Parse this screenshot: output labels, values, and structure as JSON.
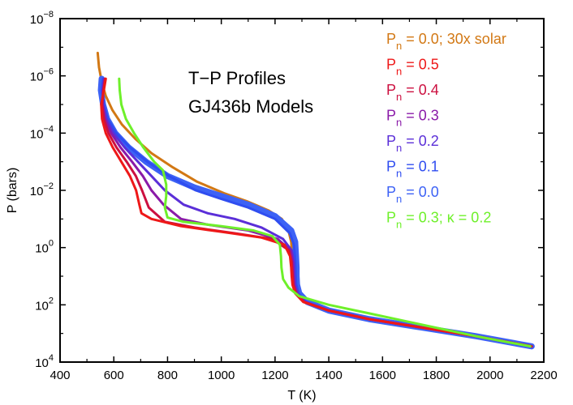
{
  "chart_data": {
    "type": "line",
    "title": "T−P Profiles",
    "subtitle": "GJ436b Models",
    "xlabel": "T (K)",
    "ylabel": "P (bars)",
    "xlim": [
      400,
      2200
    ],
    "ylim_log10": [
      -8,
      4
    ],
    "y_inverted": true,
    "y_scale": "log",
    "x_ticks": [
      400,
      600,
      800,
      1000,
      1200,
      1400,
      1600,
      1800,
      2000,
      2200
    ],
    "y_ticks": [
      {
        "base": "10",
        "exp": "−8",
        "value": -8
      },
      {
        "base": "10",
        "exp": "−6",
        "value": -6
      },
      {
        "base": "10",
        "exp": "−4",
        "value": -4
      },
      {
        "base": "10",
        "exp": "−2",
        "value": -2
      },
      {
        "base": "10",
        "exp": "0",
        "value": 0
      },
      {
        "base": "10",
        "exp": "2",
        "value": 2
      },
      {
        "base": "10",
        "exp": "4",
        "value": 4
      }
    ],
    "legend_position": "top-right",
    "series": [
      {
        "id": "pn00",
        "name": "P",
        "sub": "n",
        "suffix": " = 0.0",
        "color": "#3d62f5",
        "lw": 7.5,
        "order": 1,
        "points": [
          [
            555,
            -5.9
          ],
          [
            552,
            -5.5
          ],
          [
            560,
            -5
          ],
          [
            575,
            -4.5
          ],
          [
            605,
            -4
          ],
          [
            655,
            -3.5
          ],
          [
            720,
            -3
          ],
          [
            800,
            -2.5
          ],
          [
            900,
            -2.1
          ],
          [
            1000,
            -1.8
          ],
          [
            1100,
            -1.5
          ],
          [
            1200,
            -1.1
          ],
          [
            1260,
            -0.6
          ],
          [
            1275,
            -0.2
          ],
          [
            1278,
            0.3
          ],
          [
            1280,
            0.7
          ],
          [
            1280,
            1.0
          ],
          [
            1282,
            1.3
          ],
          [
            1290,
            1.6
          ],
          [
            1320,
            1.9
          ],
          [
            1400,
            2.2
          ],
          [
            1550,
            2.5
          ],
          [
            1750,
            2.8
          ],
          [
            1950,
            3.1
          ],
          [
            2155,
            3.45
          ]
        ]
      },
      {
        "id": "pn01",
        "name": "P",
        "sub": "n",
        "suffix": " = 0.1",
        "color": "#2f4df0",
        "lw": 3,
        "order": 2,
        "points": [
          [
            560,
            -5.9
          ],
          [
            556,
            -5.5
          ],
          [
            562,
            -5
          ],
          [
            577,
            -4.5
          ],
          [
            608,
            -4
          ],
          [
            660,
            -3.5
          ],
          [
            725,
            -3
          ],
          [
            805,
            -2.5
          ],
          [
            905,
            -2.0
          ],
          [
            1000,
            -1.7
          ],
          [
            1100,
            -1.4
          ],
          [
            1200,
            -1.0
          ],
          [
            1255,
            -0.5
          ],
          [
            1270,
            -0.1
          ],
          [
            1274,
            0.3
          ],
          [
            1276,
            0.7
          ],
          [
            1277,
            1.0
          ],
          [
            1279,
            1.3
          ],
          [
            1287,
            1.6
          ],
          [
            1315,
            1.9
          ],
          [
            1400,
            2.2
          ],
          [
            1550,
            2.5
          ],
          [
            1750,
            2.8
          ],
          [
            1950,
            3.1
          ],
          [
            2155,
            3.45
          ]
        ]
      },
      {
        "id": "pn02",
        "name": "P",
        "sub": "n",
        "suffix": " = 0.2",
        "color": "#5b2fd8",
        "lw": 3,
        "order": 3,
        "points": [
          [
            563,
            -5.9
          ],
          [
            558,
            -5.5
          ],
          [
            560,
            -5
          ],
          [
            572,
            -4.5
          ],
          [
            598,
            -4
          ],
          [
            640,
            -3.5
          ],
          [
            690,
            -3.0
          ],
          [
            740,
            -2.5
          ],
          [
            790,
            -2.0
          ],
          [
            860,
            -1.5
          ],
          [
            950,
            -1.2
          ],
          [
            1050,
            -1.0
          ],
          [
            1150,
            -0.7
          ],
          [
            1230,
            -0.3
          ],
          [
            1262,
            0.1
          ],
          [
            1270,
            0.5
          ],
          [
            1272,
            0.9
          ],
          [
            1275,
            1.3
          ],
          [
            1284,
            1.6
          ],
          [
            1312,
            1.9
          ],
          [
            1400,
            2.2
          ],
          [
            1550,
            2.5
          ],
          [
            1750,
            2.8
          ],
          [
            1950,
            3.1
          ],
          [
            2155,
            3.45
          ]
        ]
      },
      {
        "id": "pn03",
        "name": "P",
        "sub": "n",
        "suffix": " = 0.3",
        "color": "#8a1aa8",
        "lw": 3,
        "order": 4,
        "points": [
          [
            566,
            -5.9
          ],
          [
            560,
            -5.5
          ],
          [
            558,
            -5
          ],
          [
            568,
            -4.5
          ],
          [
            590,
            -4
          ],
          [
            625,
            -3.5
          ],
          [
            668,
            -3.0
          ],
          [
            708,
            -2.5
          ],
          [
            740,
            -2.0
          ],
          [
            785,
            -1.5
          ],
          [
            850,
            -1.0
          ],
          [
            950,
            -0.8
          ],
          [
            1100,
            -0.6
          ],
          [
            1210,
            -0.3
          ],
          [
            1258,
            0.1
          ],
          [
            1266,
            0.5
          ],
          [
            1268,
            0.9
          ],
          [
            1271,
            1.3
          ],
          [
            1281,
            1.6
          ],
          [
            1310,
            1.9
          ],
          [
            1400,
            2.2
          ],
          [
            1550,
            2.5
          ],
          [
            1750,
            2.8
          ],
          [
            1950,
            3.1
          ],
          [
            2155,
            3.45
          ]
        ]
      },
      {
        "id": "pn04",
        "name": "P",
        "sub": "n",
        "suffix": " = 0.4",
        "color": "#cc1040",
        "lw": 3,
        "order": 5,
        "points": [
          [
            568,
            -5.9
          ],
          [
            562,
            -5.5
          ],
          [
            556,
            -5
          ],
          [
            563,
            -4.5
          ],
          [
            580,
            -4
          ],
          [
            610,
            -3.5
          ],
          [
            648,
            -3.0
          ],
          [
            682,
            -2.5
          ],
          [
            705,
            -2.0
          ],
          [
            730,
            -1.4
          ],
          [
            790,
            -0.9
          ],
          [
            900,
            -0.7
          ],
          [
            1050,
            -0.5
          ],
          [
            1190,
            -0.3
          ],
          [
            1252,
            0.1
          ],
          [
            1262,
            0.5
          ],
          [
            1265,
            0.9
          ],
          [
            1268,
            1.3
          ],
          [
            1278,
            1.6
          ],
          [
            1308,
            1.9
          ],
          [
            1400,
            2.2
          ],
          [
            1550,
            2.5
          ],
          [
            1750,
            2.8
          ],
          [
            1950,
            3.1
          ],
          [
            2155,
            3.45
          ]
        ]
      },
      {
        "id": "pn05",
        "name": "P",
        "sub": "n",
        "suffix": " = 0.5",
        "color": "#ee1818",
        "lw": 3,
        "order": 6,
        "points": [
          [
            570,
            -5.9
          ],
          [
            563,
            -5.5
          ],
          [
            553,
            -5
          ],
          [
            556,
            -4.5
          ],
          [
            570,
            -4
          ],
          [
            596,
            -3.5
          ],
          [
            628,
            -3.0
          ],
          [
            660,
            -2.5
          ],
          [
            683,
            -2.0
          ],
          [
            695,
            -1.5
          ],
          [
            703,
            -1.2
          ],
          [
            740,
            -1.0
          ],
          [
            850,
            -0.75
          ],
          [
            1000,
            -0.55
          ],
          [
            1150,
            -0.35
          ],
          [
            1235,
            -0.1
          ],
          [
            1256,
            0.3
          ],
          [
            1260,
            0.7
          ],
          [
            1262,
            1.0
          ],
          [
            1265,
            1.3
          ],
          [
            1275,
            1.6
          ],
          [
            1305,
            1.9
          ],
          [
            1400,
            2.2
          ],
          [
            1550,
            2.5
          ],
          [
            1750,
            2.8
          ],
          [
            1950,
            3.1
          ],
          [
            2155,
            3.45
          ]
        ]
      },
      {
        "id": "solar30",
        "name": "P",
        "sub": "n",
        "suffix": " = 0.0; 30x solar",
        "color": "#d27814",
        "lw": 3,
        "order": 0,
        "points": [
          [
            540,
            -6.8
          ],
          [
            545,
            -6.3
          ],
          [
            555,
            -5.8
          ],
          [
            570,
            -5.3
          ],
          [
            595,
            -4.8
          ],
          [
            630,
            -4.3
          ],
          [
            680,
            -3.8
          ],
          [
            740,
            -3.3
          ],
          [
            820,
            -2.8
          ],
          [
            910,
            -2.3
          ],
          [
            1010,
            -1.9
          ],
          [
            1100,
            -1.6
          ],
          [
            1175,
            -1.3
          ],
          [
            1225,
            -1.0
          ],
          [
            1250,
            -0.6
          ],
          [
            1260,
            -0.2
          ],
          [
            1262,
            0.1
          ]
        ]
      },
      {
        "id": "kappa",
        "name": "P",
        "sub": "n",
        "suffix": " = 0.3; κ = 0.2",
        "color": "#6ef02a",
        "lw": 3,
        "order": 7,
        "points": [
          [
            620,
            -5.9
          ],
          [
            622,
            -5.5
          ],
          [
            628,
            -5
          ],
          [
            645,
            -4.5
          ],
          [
            675,
            -4.0
          ],
          [
            710,
            -3.5
          ],
          [
            750,
            -3.0
          ],
          [
            783,
            -2.7
          ],
          [
            795,
            -2.2
          ],
          [
            795,
            -1.8
          ],
          [
            790,
            -1.4
          ],
          [
            800,
            -1.05
          ],
          [
            860,
            -0.9
          ],
          [
            1000,
            -0.75
          ],
          [
            1120,
            -0.6
          ],
          [
            1190,
            -0.4
          ],
          [
            1218,
            -0.1
          ],
          [
            1222,
            0.3
          ],
          [
            1224,
            0.7
          ],
          [
            1230,
            1.1
          ],
          [
            1250,
            1.4
          ],
          [
            1290,
            1.7
          ],
          [
            1400,
            2.0
          ],
          [
            1550,
            2.3
          ],
          [
            1750,
            2.7
          ],
          [
            1950,
            3.1
          ],
          [
            2150,
            3.45
          ]
        ]
      }
    ],
    "legend_order": [
      "solar30",
      "pn05",
      "pn04",
      "pn03",
      "pn02",
      "pn01",
      "pn00",
      "kappa"
    ]
  }
}
